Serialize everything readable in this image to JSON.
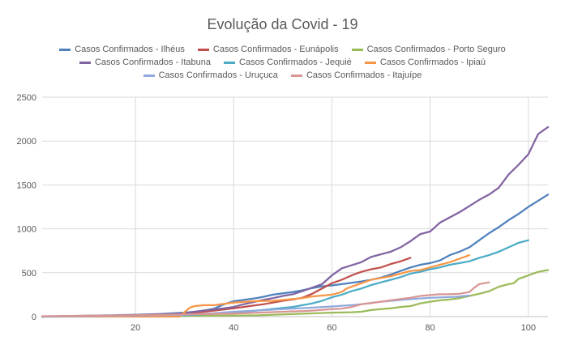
{
  "chart_data": {
    "type": "line",
    "title": "Evolução da Covid - 19",
    "xlim": [
      1,
      104
    ],
    "ylim": [
      0,
      2500
    ],
    "xticks": [
      20,
      40,
      60,
      80,
      100
    ],
    "yticks": [
      0,
      500,
      1000,
      1500,
      2000,
      2500
    ],
    "grid": true,
    "legend_position": "top",
    "series": [
      {
        "name": "Casos Confirmados - Ilhéus",
        "color": "#4F81BD",
        "x": [
          1,
          5,
          10,
          15,
          20,
          25,
          30,
          33,
          36,
          38,
          40,
          42,
          44,
          46,
          48,
          50,
          52,
          54,
          56,
          58,
          60,
          62,
          64,
          66,
          68,
          70,
          72,
          74,
          76,
          78,
          80,
          82,
          84,
          86,
          88,
          90,
          92,
          94,
          96,
          98,
          100,
          102,
          104
        ],
        "values": [
          0,
          5,
          10,
          15,
          20,
          30,
          45,
          60,
          90,
          140,
          175,
          190,
          205,
          225,
          250,
          265,
          280,
          300,
          325,
          345,
          355,
          370,
          385,
          400,
          420,
          445,
          480,
          520,
          560,
          590,
          610,
          640,
          700,
          740,
          790,
          870,
          950,
          1020,
          1100,
          1170,
          1250,
          1320,
          1390
        ]
      },
      {
        "name": "Casos Confirmados - Eunápolis",
        "color": "#C0504D",
        "x": [
          1,
          5,
          10,
          15,
          20,
          25,
          30,
          34,
          38,
          40,
          42,
          44,
          46,
          48,
          50,
          52,
          54,
          56,
          58,
          60,
          62,
          64,
          66,
          68,
          70,
          72,
          74,
          76
        ],
        "values": [
          0,
          5,
          8,
          12,
          18,
          25,
          35,
          55,
          80,
          95,
          110,
          125,
          140,
          160,
          180,
          195,
          215,
          260,
          320,
          380,
          420,
          470,
          510,
          540,
          560,
          600,
          630,
          670
        ]
      },
      {
        "name": "Casos Confirmados - Porto Seguro",
        "color": "#9BBB59",
        "x": [
          1,
          10,
          20,
          30,
          40,
          45,
          50,
          55,
          60,
          64,
          66,
          68,
          70,
          72,
          74,
          76,
          78,
          80,
          82,
          84,
          86,
          88,
          90,
          92,
          94,
          96,
          97,
          98,
          100,
          102,
          104
        ],
        "values": [
          0,
          2,
          5,
          8,
          12,
          15,
          25,
          35,
          45,
          50,
          55,
          75,
          85,
          95,
          110,
          120,
          150,
          170,
          185,
          195,
          210,
          235,
          260,
          290,
          340,
          370,
          380,
          430,
          470,
          510,
          530
        ]
      },
      {
        "name": "Casos Confirmados - Itabuna",
        "color": "#8064A2",
        "x": [
          1,
          5,
          10,
          15,
          20,
          25,
          30,
          34,
          38,
          40,
          42,
          44,
          46,
          48,
          50,
          52,
          54,
          56,
          58,
          60,
          62,
          64,
          66,
          68,
          70,
          72,
          74,
          76,
          78,
          80,
          82,
          84,
          86,
          88,
          90,
          92,
          94,
          96,
          98,
          100,
          102,
          104
        ],
        "values": [
          0,
          5,
          8,
          12,
          18,
          25,
          40,
          70,
          95,
          110,
          140,
          165,
          190,
          210,
          235,
          255,
          290,
          330,
          370,
          470,
          550,
          585,
          620,
          680,
          710,
          740,
          790,
          860,
          940,
          970,
          1070,
          1130,
          1190,
          1260,
          1330,
          1390,
          1470,
          1620,
          1730,
          1850,
          2080,
          2160
        ]
      },
      {
        "name": "Casos Confirmados - Jequié",
        "color": "#4BACC6",
        "x": [
          1,
          10,
          20,
          30,
          35,
          40,
          45,
          50,
          52,
          54,
          56,
          58,
          60,
          62,
          64,
          66,
          68,
          70,
          72,
          74,
          76,
          78,
          80,
          82,
          84,
          86,
          88,
          90,
          92,
          94,
          96,
          98,
          100
        ],
        "values": [
          0,
          2,
          5,
          15,
          30,
          45,
          70,
          100,
          110,
          130,
          150,
          180,
          220,
          250,
          290,
          320,
          360,
          390,
          420,
          450,
          490,
          510,
          540,
          560,
          590,
          610,
          630,
          670,
          700,
          740,
          790,
          840,
          870
        ]
      },
      {
        "name": "Casos Confirmados - Ipiaú",
        "color": "#F79646",
        "x": [
          1,
          10,
          20,
          29,
          30,
          31,
          32,
          34,
          36,
          38,
          40,
          44,
          48,
          50,
          54,
          56,
          58,
          60,
          62,
          63,
          64,
          66,
          68,
          70,
          72,
          74,
          76,
          78,
          80,
          82,
          84,
          86,
          88
        ],
        "values": [
          0,
          0,
          0,
          0,
          50,
          100,
          120,
          130,
          130,
          145,
          160,
          175,
          180,
          190,
          210,
          230,
          240,
          250,
          280,
          320,
          340,
          380,
          420,
          440,
          460,
          490,
          520,
          530,
          560,
          590,
          620,
          660,
          700
        ]
      },
      {
        "name": "Casos Confirmados - Uruçuca",
        "color": "#8FAADC",
        "x": [
          1,
          10,
          20,
          30,
          35,
          40,
          45,
          50,
          55,
          60,
          65,
          70,
          75,
          80,
          85,
          88
        ],
        "values": [
          0,
          5,
          10,
          20,
          35,
          55,
          70,
          85,
          100,
          115,
          135,
          170,
          195,
          215,
          225,
          240
        ]
      },
      {
        "name": "Casos Confirmados - Itajuípe",
        "color": "#D99694",
        "x": [
          1,
          10,
          20,
          30,
          40,
          45,
          50,
          55,
          60,
          62,
          64,
          66,
          68,
          70,
          72,
          74,
          76,
          78,
          80,
          82,
          84,
          86,
          87,
          88,
          89,
          90,
          92
        ],
        "values": [
          5,
          10,
          15,
          25,
          35,
          45,
          55,
          65,
          85,
          90,
          110,
          140,
          155,
          170,
          185,
          200,
          215,
          235,
          245,
          255,
          255,
          260,
          270,
          280,
          330,
          370,
          390
        ]
      }
    ]
  }
}
